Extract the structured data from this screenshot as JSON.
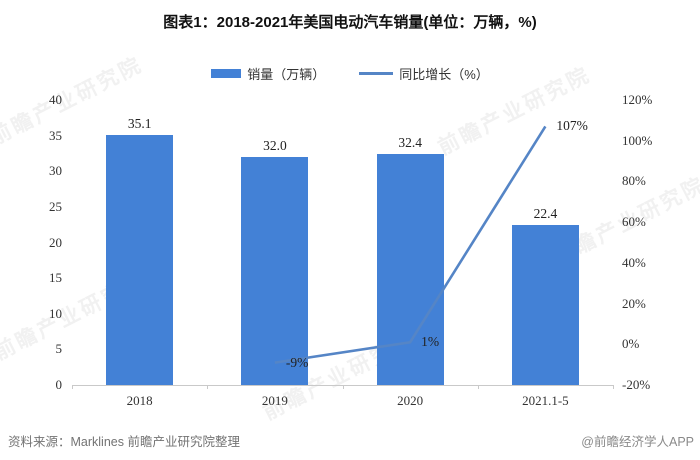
{
  "title": "图表1：2018-2021年美国电动汽车销量(单位：万辆，%)",
  "legend": [
    {
      "label": "销量（万辆）",
      "type": "bar"
    },
    {
      "label": "同比增长（%）",
      "type": "line"
    }
  ],
  "footer": {
    "source": "资料来源：Marklines 前瞻产业研究院整理",
    "brand": "@前瞻经济学人APP"
  },
  "watermark": {
    "text": "前瞻产业研究院"
  },
  "colors": {
    "bar": "#4381d6",
    "line": "#5585c6",
    "axis": "#c9c9c9",
    "text": "#222222",
    "muted": "#737373"
  },
  "chart_data": {
    "type": "bar+line",
    "categories": [
      "2018",
      "2019",
      "2020",
      "2021.1-5"
    ],
    "series": [
      {
        "name": "销量（万辆）",
        "type": "bar",
        "axis": "left",
        "values": [
          35.1,
          32.0,
          32.4,
          22.4
        ],
        "labels": [
          "35.1",
          "32.0",
          "32.4",
          "22.4"
        ]
      },
      {
        "name": "同比增长（%）",
        "type": "line",
        "axis": "right",
        "values": [
          null,
          -9,
          1,
          107
        ],
        "labels": [
          "",
          "-9%",
          "1%",
          "107%"
        ]
      }
    ],
    "left_axis": {
      "min": 0,
      "max": 40,
      "step": 5,
      "ticks": [
        "0",
        "5",
        "10",
        "15",
        "20",
        "25",
        "30",
        "35",
        "40"
      ]
    },
    "right_axis": {
      "min": -20,
      "max": 120,
      "step": 20,
      "ticks": [
        "-20%",
        "0%",
        "20%",
        "40%",
        "60%",
        "80%",
        "100%",
        "120%"
      ]
    },
    "grid": false,
    "legend_position": "top"
  }
}
